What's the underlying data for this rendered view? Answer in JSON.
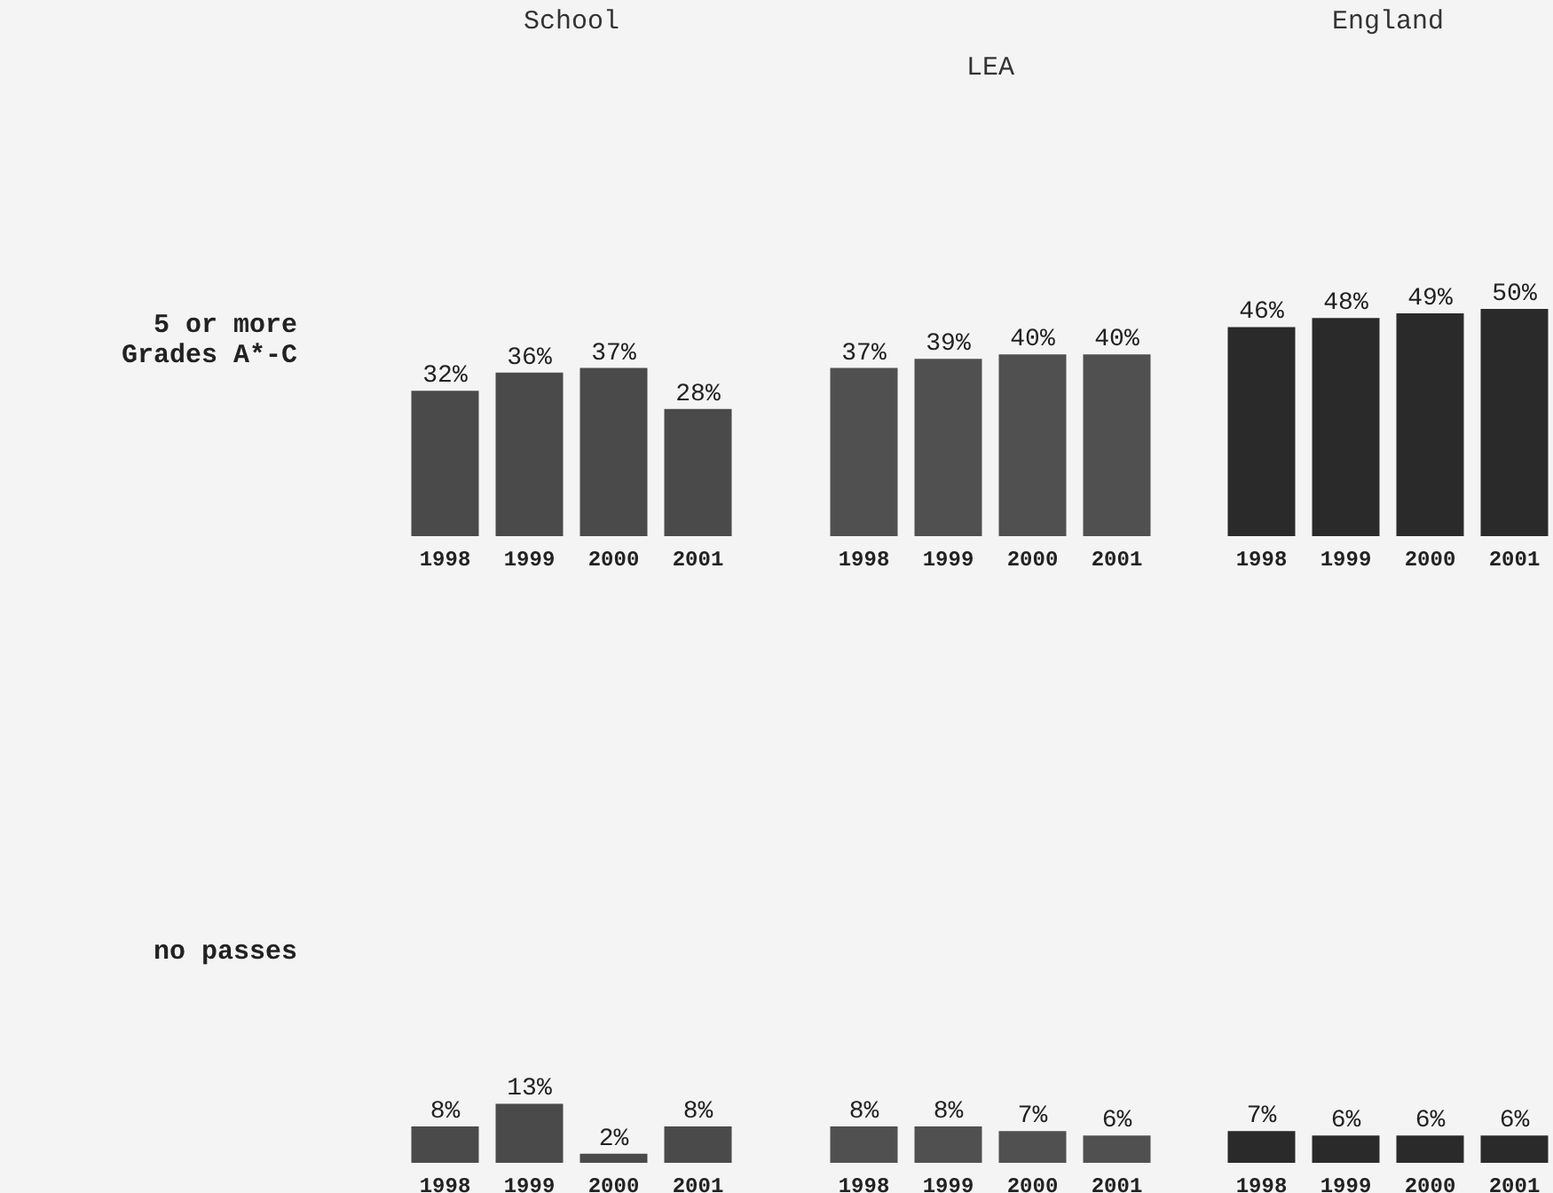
{
  "chart_data": [
    {
      "type": "bar",
      "title": "School",
      "ylabel": "5 or more Grades A*-C",
      "categories": [
        "1998",
        "1999",
        "2000",
        "2001"
      ],
      "values": [
        32,
        36,
        37,
        28
      ],
      "value_labels": [
        "32%",
        "36%",
        "37%",
        "28%"
      ],
      "color": "#4a4a4a",
      "tick_labels": "x",
      "grid": false,
      "legend": false
    },
    {
      "type": "bar",
      "title": "LEA",
      "categories": [
        "1998",
        "1999",
        "2000",
        "2001"
      ],
      "values": [
        37,
        39,
        40,
        40
      ],
      "value_labels": [
        "37%",
        "39%",
        "40%",
        "40%"
      ],
      "color": "#505050",
      "tick_labels": "x",
      "grid": false,
      "legend": false
    },
    {
      "type": "bar",
      "title": "England",
      "categories": [
        "1998",
        "1999",
        "2000",
        "2001"
      ],
      "values": [
        46,
        48,
        49,
        50
      ],
      "value_labels": [
        "46%",
        "48%",
        "49%",
        "50%"
      ],
      "color": "#2a2a2a",
      "tick_labels": "x",
      "grid": false,
      "legend": false
    },
    {
      "type": "bar",
      "ylabel": "no passes",
      "categories": [
        "1998",
        "1999",
        "2000",
        "2001"
      ],
      "values": [
        8,
        13,
        2,
        8
      ],
      "value_labels": [
        "8%",
        "13%",
        "2%",
        "8%"
      ],
      "color": "#4a4a4a",
      "tick_labels": "x",
      "grid": false,
      "legend": false
    },
    {
      "type": "bar",
      "categories": [
        "1998",
        "1999",
        "2000",
        "2001"
      ],
      "values": [
        8,
        8,
        7,
        6
      ],
      "value_labels": [
        "8%",
        "8%",
        "7%",
        "6%"
      ],
      "color": "#505050",
      "tick_labels": "x",
      "grid": false,
      "legend": false
    },
    {
      "type": "bar",
      "categories": [
        "1998",
        "1999",
        "2000",
        "2001"
      ],
      "values": [
        7,
        6,
        6,
        6
      ],
      "value_labels": [
        "7%",
        "6%",
        "6%",
        "6%"
      ],
      "color": "#2a2a2a",
      "tick_labels": "x",
      "grid": false,
      "legend": false
    }
  ]
}
